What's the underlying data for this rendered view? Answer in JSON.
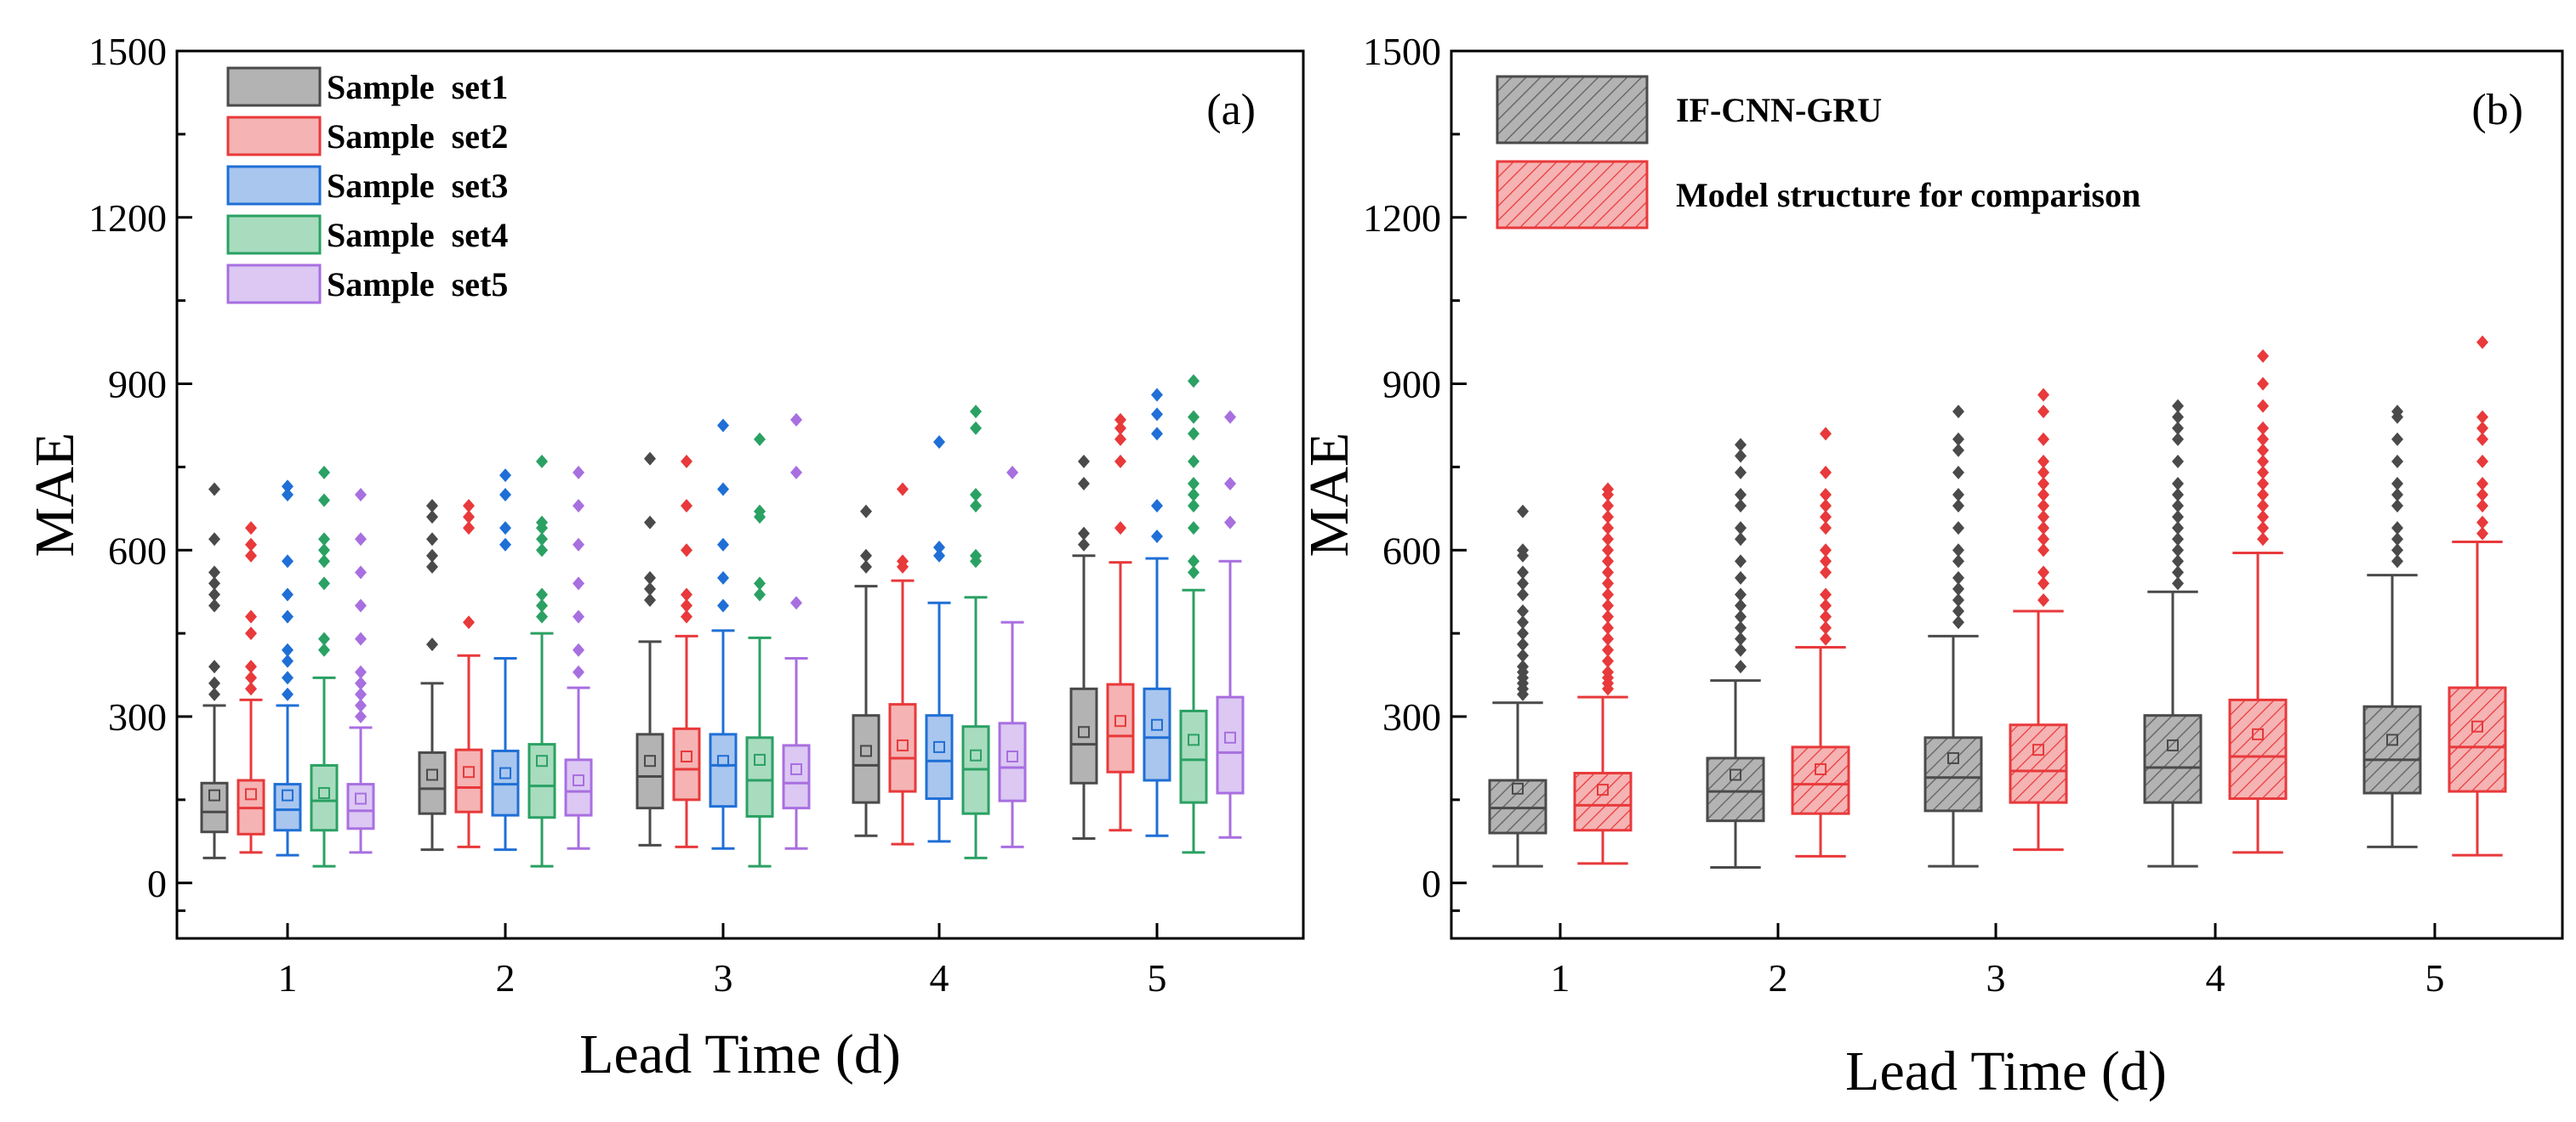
{
  "chart_data": [
    {
      "type": "boxplot",
      "panel_label": "(a)",
      "xlabel": "Lead Time (d)",
      "ylabel": "MAE",
      "ylim": [
        -100,
        1500
      ],
      "yticks": [
        0,
        300,
        600,
        900,
        1200,
        1500
      ],
      "ytick_labels": [
        "0",
        "300",
        "600",
        "900",
        "1200",
        "1500"
      ],
      "categories": [
        "1",
        "2",
        "3",
        "4",
        "5"
      ],
      "legend_position": "top-left",
      "series": [
        {
          "name": "Sample  set1",
          "color": "#4a4a4a",
          "fill": "#b3b3b3",
          "boxes": [
            {
              "min": 45,
              "q1": 92,
              "median": 128,
              "q3": 180,
              "max": 320,
              "mean": 158,
              "outliers": [
                340,
                360,
                390,
                500,
                520,
                540,
                560,
                620,
                710
              ]
            },
            {
              "min": 60,
              "q1": 125,
              "median": 170,
              "q3": 235,
              "max": 360,
              "mean": 195,
              "outliers": [
                430,
                570,
                590,
                620,
                660,
                680
              ]
            },
            {
              "min": 68,
              "q1": 135,
              "median": 192,
              "q3": 268,
              "max": 435,
              "mean": 220,
              "outliers": [
                510,
                530,
                550,
                650,
                765
              ]
            },
            {
              "min": 85,
              "q1": 145,
              "median": 212,
              "q3": 302,
              "max": 535,
              "mean": 238,
              "outliers": [
                570,
                590,
                670
              ]
            },
            {
              "min": 80,
              "q1": 180,
              "median": 250,
              "q3": 350,
              "max": 590,
              "mean": 272,
              "outliers": [
                610,
                630,
                720,
                760
              ]
            }
          ]
        },
        {
          "name": "Sample  set2",
          "color": "#e8393b",
          "fill": "#f5b3b3",
          "boxes": [
            {
              "min": 55,
              "q1": 88,
              "median": 135,
              "q3": 185,
              "max": 330,
              "mean": 160,
              "outliers": [
                350,
                370,
                390,
                450,
                480,
                590,
                610,
                640
              ]
            },
            {
              "min": 65,
              "q1": 128,
              "median": 172,
              "q3": 240,
              "max": 410,
              "mean": 200,
              "outliers": [
                470,
                640,
                660,
                680
              ]
            },
            {
              "min": 65,
              "q1": 150,
              "median": 205,
              "q3": 278,
              "max": 445,
              "mean": 228,
              "outliers": [
                480,
                500,
                520,
                600,
                680,
                760
              ]
            },
            {
              "min": 70,
              "q1": 165,
              "median": 225,
              "q3": 322,
              "max": 545,
              "mean": 248,
              "outliers": [
                570,
                580,
                710
              ]
            },
            {
              "min": 95,
              "q1": 200,
              "median": 265,
              "q3": 358,
              "max": 578,
              "mean": 292,
              "outliers": [
                640,
                760,
                800,
                820,
                835
              ]
            }
          ]
        },
        {
          "name": "Sample  set3",
          "color": "#1f6fd6",
          "fill": "#a9c6ee",
          "boxes": [
            {
              "min": 50,
              "q1": 95,
              "median": 132,
              "q3": 178,
              "max": 320,
              "mean": 158,
              "outliers": [
                340,
                370,
                400,
                420,
                480,
                520,
                580,
                700,
                715
              ]
            },
            {
              "min": 60,
              "q1": 122,
              "median": 178,
              "q3": 238,
              "max": 405,
              "mean": 198,
              "outliers": [
                610,
                640,
                700,
                735
              ]
            },
            {
              "min": 62,
              "q1": 138,
              "median": 212,
              "q3": 268,
              "max": 455,
              "mean": 220,
              "outliers": [
                500,
                550,
                610,
                710,
                825
              ]
            },
            {
              "min": 75,
              "q1": 152,
              "median": 220,
              "q3": 302,
              "max": 505,
              "mean": 245,
              "outliers": [
                590,
                605,
                795
              ]
            },
            {
              "min": 85,
              "q1": 185,
              "median": 262,
              "q3": 350,
              "max": 585,
              "mean": 285,
              "outliers": [
                625,
                680,
                810,
                845,
                880
              ]
            }
          ]
        },
        {
          "name": "Sample  set4",
          "color": "#2aa163",
          "fill": "#a9dcbf",
          "boxes": [
            {
              "min": 30,
              "q1": 95,
              "median": 148,
              "q3": 212,
              "max": 370,
              "mean": 162,
              "outliers": [
                420,
                440,
                540,
                580,
                600,
                620,
                690,
                740
              ]
            },
            {
              "min": 30,
              "q1": 118,
              "median": 175,
              "q3": 250,
              "max": 450,
              "mean": 220,
              "outliers": [
                480,
                500,
                520,
                600,
                620,
                640,
                650,
                760
              ]
            },
            {
              "min": 30,
              "q1": 120,
              "median": 185,
              "q3": 262,
              "max": 442,
              "mean": 222,
              "outliers": [
                520,
                540,
                660,
                670,
                800
              ]
            },
            {
              "min": 45,
              "q1": 125,
              "median": 205,
              "q3": 282,
              "max": 515,
              "mean": 230,
              "outliers": [
                580,
                590,
                680,
                700,
                820,
                850
              ]
            },
            {
              "min": 55,
              "q1": 145,
              "median": 222,
              "q3": 310,
              "max": 528,
              "mean": 258,
              "outliers": [
                560,
                580,
                640,
                680,
                700,
                720,
                760,
                810,
                840,
                905
              ]
            }
          ]
        },
        {
          "name": "Sample  set5",
          "color": "#a86fe0",
          "fill": "#dcc8f3",
          "boxes": [
            {
              "min": 55,
              "q1": 98,
              "median": 130,
              "q3": 178,
              "max": 280,
              "mean": 152,
              "outliers": [
                300,
                320,
                340,
                360,
                380,
                440,
                500,
                560,
                620,
                700
              ]
            },
            {
              "min": 62,
              "q1": 122,
              "median": 165,
              "q3": 222,
              "max": 352,
              "mean": 185,
              "outliers": [
                380,
                420,
                480,
                540,
                610,
                680,
                740
              ]
            },
            {
              "min": 62,
              "q1": 135,
              "median": 180,
              "q3": 248,
              "max": 405,
              "mean": 205,
              "outliers": [
                505,
                740,
                835
              ]
            },
            {
              "min": 65,
              "q1": 148,
              "median": 208,
              "q3": 288,
              "max": 470,
              "mean": 228,
              "outliers": [
                740
              ]
            },
            {
              "min": 82,
              "q1": 162,
              "median": 235,
              "q3": 335,
              "max": 580,
              "mean": 262,
              "outliers": [
                650,
                720,
                840
              ]
            }
          ]
        }
      ]
    },
    {
      "type": "boxplot",
      "panel_label": "(b)",
      "xlabel": "Lead Time (d)",
      "ylabel": "MAE",
      "ylim": [
        -100,
        1500
      ],
      "yticks": [
        0,
        300,
        600,
        900,
        1200,
        1500
      ],
      "ytick_labels": [
        "0",
        "300",
        "600",
        "900",
        "1200",
        "1500"
      ],
      "categories": [
        "1",
        "2",
        "3",
        "4",
        "5"
      ],
      "legend_position": "top-left",
      "series": [
        {
          "name": "IF-CNN-GRU",
          "color": "#4a4a4a",
          "fill": "#b3b3b3",
          "boxes": [
            {
              "min": 30,
              "q1": 90,
              "median": 135,
              "q3": 185,
              "max": 325,
              "mean": 170,
              "outliers": [
                340,
                350,
                360,
                370,
                380,
                390,
                410,
                430,
                450,
                470,
                490,
                520,
                540,
                560,
                590,
                600,
                670
              ]
            },
            {
              "min": 28,
              "q1": 112,
              "median": 165,
              "q3": 225,
              "max": 365,
              "mean": 195,
              "outliers": [
                390,
                420,
                440,
                460,
                480,
                500,
                520,
                550,
                580,
                620,
                640,
                680,
                700,
                740,
                770,
                790
              ]
            },
            {
              "min": 30,
              "q1": 130,
              "median": 190,
              "q3": 262,
              "max": 445,
              "mean": 225,
              "outliers": [
                470,
                490,
                510,
                530,
                550,
                580,
                600,
                640,
                680,
                700,
                740,
                780,
                800,
                850
              ]
            },
            {
              "min": 30,
              "q1": 145,
              "median": 208,
              "q3": 302,
              "max": 525,
              "mean": 248,
              "outliers": [
                540,
                560,
                580,
                600,
                620,
                640,
                660,
                680,
                700,
                720,
                760,
                800,
                820,
                840,
                860
              ]
            },
            {
              "min": 65,
              "q1": 162,
              "median": 222,
              "q3": 318,
              "max": 555,
              "mean": 258,
              "outliers": [
                580,
                600,
                620,
                640,
                680,
                700,
                720,
                760,
                800,
                840,
                850
              ]
            }
          ]
        },
        {
          "name": "Model structure for comparison",
          "color": "#e8393b",
          "fill": "#f5b3b3",
          "boxes": [
            {
              "min": 35,
              "q1": 95,
              "median": 140,
              "q3": 198,
              "max": 335,
              "mean": 168,
              "outliers": [
                350,
                360,
                370,
                380,
                400,
                420,
                440,
                460,
                480,
                500,
                520,
                540,
                560,
                580,
                600,
                620,
                640,
                660,
                680,
                700,
                710
              ]
            },
            {
              "min": 48,
              "q1": 125,
              "median": 178,
              "q3": 245,
              "max": 425,
              "mean": 205,
              "outliers": [
                440,
                460,
                480,
                500,
                520,
                560,
                580,
                600,
                640,
                660,
                680,
                700,
                740,
                810
              ]
            },
            {
              "min": 60,
              "q1": 145,
              "median": 202,
              "q3": 285,
              "max": 490,
              "mean": 240,
              "outliers": [
                510,
                540,
                560,
                600,
                620,
                640,
                660,
                680,
                700,
                720,
                740,
                760,
                800,
                850,
                880
              ]
            },
            {
              "min": 55,
              "q1": 152,
              "median": 228,
              "q3": 330,
              "max": 595,
              "mean": 268,
              "outliers": [
                620,
                640,
                660,
                680,
                700,
                720,
                740,
                760,
                780,
                800,
                820,
                860,
                900,
                950
              ]
            },
            {
              "min": 50,
              "q1": 165,
              "median": 245,
              "q3": 352,
              "max": 615,
              "mean": 282,
              "outliers": [
                630,
                650,
                680,
                700,
                720,
                760,
                800,
                820,
                840,
                975
              ]
            }
          ]
        }
      ]
    }
  ]
}
